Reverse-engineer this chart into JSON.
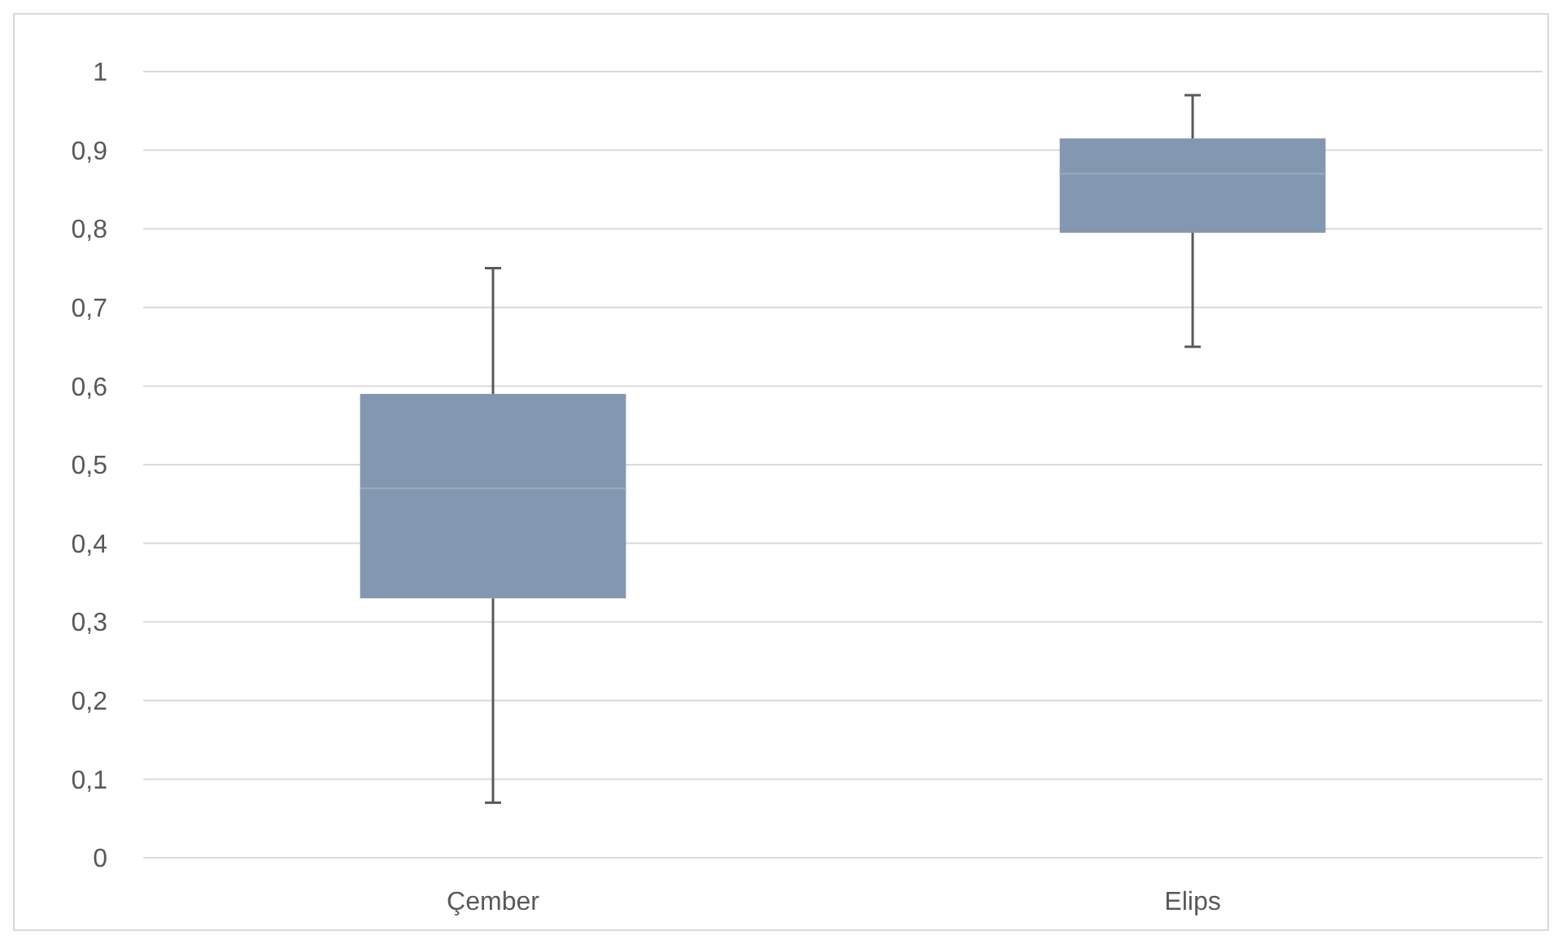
{
  "chart_data": {
    "type": "box",
    "categories": [
      "Çember",
      "Elips"
    ],
    "boxes": [
      {
        "low": 0.07,
        "q1": 0.33,
        "median": 0.47,
        "q3": 0.59,
        "high": 0.75
      },
      {
        "low": 0.65,
        "q1": 0.795,
        "median": 0.87,
        "q3": 0.915,
        "high": 0.97
      }
    ],
    "color": "#8497b0",
    "ylim": [
      0,
      1
    ],
    "yticks": [
      0,
      {
        "value": 0.1,
        "label": "0,1"
      },
      {
        "value": 0.2,
        "label": "0,2"
      },
      {
        "value": 0.3,
        "label": "0,3"
      },
      {
        "value": 0.4,
        "label": "0,4"
      },
      {
        "value": 0.5,
        "label": "0,5"
      },
      {
        "value": 0.6,
        "label": "0,6"
      },
      {
        "value": 0.7,
        "label": "0,7"
      },
      {
        "value": 0.8,
        "label": "0,8"
      },
      {
        "value": 0.9,
        "label": "0,9"
      },
      1
    ],
    "grid": "y"
  }
}
